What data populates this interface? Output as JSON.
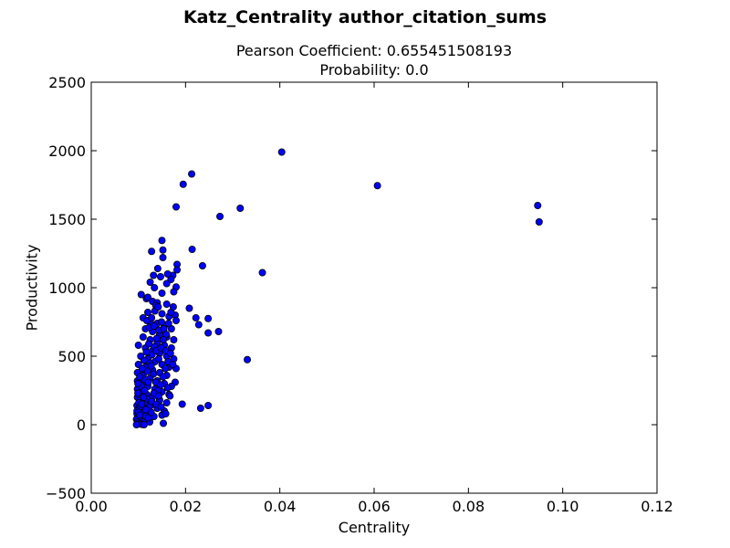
{
  "figure": {
    "suptitle": "Katz_Centrality author_citation_sums",
    "subtitle_line1": "Pearson Coefficient: 0.655451508193",
    "subtitle_line2": "Probability: 0.0"
  },
  "chart_data": {
    "type": "scatter",
    "xlabel": "Centrality",
    "ylabel": "Productivity",
    "xlim": [
      0.0,
      0.12
    ],
    "ylim": [
      -500,
      2500
    ],
    "xticks": [
      0.0,
      0.02,
      0.04,
      0.06,
      0.08,
      0.1,
      0.12
    ],
    "xtick_labels": [
      "0.00",
      "0.02",
      "0.04",
      "0.06",
      "0.08",
      "0.10",
      "0.12"
    ],
    "yticks": [
      -500,
      0,
      500,
      1000,
      1500,
      2000,
      2500
    ],
    "ytick_labels": [
      "−500",
      "0",
      "500",
      "1000",
      "1500",
      "2000",
      "2500"
    ],
    "grid": false,
    "marker_color": "#0000ff",
    "marker_edge": "#000000",
    "points": [
      [
        0.0404,
        1990
      ],
      [
        0.0213,
        1830
      ],
      [
        0.0195,
        1755
      ],
      [
        0.0607,
        1745
      ],
      [
        0.0947,
        1600
      ],
      [
        0.095,
        1480
      ],
      [
        0.0316,
        1580
      ],
      [
        0.0273,
        1520
      ],
      [
        0.018,
        1590
      ],
      [
        0.015,
        1345
      ],
      [
        0.0152,
        1275
      ],
      [
        0.0128,
        1265
      ],
      [
        0.0214,
        1280
      ],
      [
        0.0152,
        1220
      ],
      [
        0.0182,
        1170
      ],
      [
        0.0236,
        1160
      ],
      [
        0.0182,
        1130
      ],
      [
        0.0141,
        1140
      ],
      [
        0.0363,
        1110
      ],
      [
        0.0173,
        1090
      ],
      [
        0.0162,
        1100
      ],
      [
        0.0132,
        1090
      ],
      [
        0.0147,
        1080
      ],
      [
        0.0169,
        1060
      ],
      [
        0.0125,
        1040
      ],
      [
        0.016,
        1030
      ],
      [
        0.0134,
        1000
      ],
      [
        0.018,
        1005
      ],
      [
        0.015,
        960
      ],
      [
        0.0106,
        950
      ],
      [
        0.0117,
        920
      ],
      [
        0.012,
        930
      ],
      [
        0.013,
        900
      ],
      [
        0.014,
        890
      ],
      [
        0.016,
        880
      ],
      [
        0.0175,
        970
      ],
      [
        0.0208,
        850
      ],
      [
        0.0178,
        800
      ],
      [
        0.0222,
        780
      ],
      [
        0.0248,
        775
      ],
      [
        0.027,
        680
      ],
      [
        0.0248,
        670
      ],
      [
        0.0228,
        730
      ],
      [
        0.011,
        780
      ],
      [
        0.012,
        820
      ],
      [
        0.0135,
        830
      ],
      [
        0.015,
        810
      ],
      [
        0.0165,
        790
      ],
      [
        0.018,
        760
      ],
      [
        0.0125,
        750
      ],
      [
        0.014,
        740
      ],
      [
        0.0155,
        720
      ],
      [
        0.017,
        700
      ],
      [
        0.0115,
        700
      ],
      [
        0.013,
        680
      ],
      [
        0.0145,
        660
      ],
      [
        0.016,
        640
      ],
      [
        0.0175,
        620
      ],
      [
        0.011,
        640
      ],
      [
        0.0125,
        620
      ],
      [
        0.014,
        600
      ],
      [
        0.0155,
        580
      ],
      [
        0.017,
        560
      ],
      [
        0.01,
        580
      ],
      [
        0.0115,
        560
      ],
      [
        0.013,
        540
      ],
      [
        0.0145,
        520
      ],
      [
        0.016,
        500
      ],
      [
        0.0175,
        480
      ],
      [
        0.0105,
        500
      ],
      [
        0.012,
        480
      ],
      [
        0.0135,
        460
      ],
      [
        0.015,
        440
      ],
      [
        0.0165,
        420
      ],
      [
        0.018,
        410
      ],
      [
        0.0331,
        475
      ],
      [
        0.01,
        440
      ],
      [
        0.0115,
        420
      ],
      [
        0.013,
        400
      ],
      [
        0.0145,
        380
      ],
      [
        0.016,
        360
      ],
      [
        0.0178,
        310
      ],
      [
        0.0098,
        380
      ],
      [
        0.011,
        360
      ],
      [
        0.0125,
        340
      ],
      [
        0.014,
        320
      ],
      [
        0.0155,
        300
      ],
      [
        0.017,
        280
      ],
      [
        0.0098,
        320
      ],
      [
        0.0108,
        300
      ],
      [
        0.012,
        280
      ],
      [
        0.0135,
        260
      ],
      [
        0.015,
        240
      ],
      [
        0.0165,
        220
      ],
      [
        0.0098,
        260
      ],
      [
        0.0106,
        240
      ],
      [
        0.0118,
        220
      ],
      [
        0.013,
        200
      ],
      [
        0.0145,
        180
      ],
      [
        0.016,
        160
      ],
      [
        0.0193,
        150
      ],
      [
        0.0248,
        140
      ],
      [
        0.0232,
        120
      ],
      [
        0.0098,
        200
      ],
      [
        0.0104,
        180
      ],
      [
        0.0114,
        160
      ],
      [
        0.0126,
        140
      ],
      [
        0.014,
        120
      ],
      [
        0.0155,
        100
      ],
      [
        0.0097,
        140
      ],
      [
        0.0102,
        120
      ],
      [
        0.011,
        100
      ],
      [
        0.012,
        80
      ],
      [
        0.0133,
        60
      ],
      [
        0.015,
        70
      ],
      [
        0.0158,
        80
      ],
      [
        0.0097,
        80
      ],
      [
        0.01,
        60
      ],
      [
        0.0106,
        40
      ],
      [
        0.0114,
        30
      ],
      [
        0.0124,
        20
      ],
      [
        0.0153,
        10
      ],
      [
        0.0096,
        40
      ],
      [
        0.0098,
        20
      ],
      [
        0.0101,
        10
      ],
      [
        0.0104,
        5
      ],
      [
        0.0108,
        2
      ],
      [
        0.0112,
        0
      ],
      [
        0.0096,
        0
      ],
      [
        0.0097,
        100
      ],
      [
        0.0102,
        220
      ],
      [
        0.0107,
        280
      ],
      [
        0.0113,
        330
      ],
      [
        0.0119,
        390
      ],
      [
        0.0124,
        450
      ],
      [
        0.0129,
        510
      ],
      [
        0.0134,
        570
      ],
      [
        0.0139,
        630
      ],
      [
        0.0144,
        690
      ],
      [
        0.0149,
        750
      ],
      [
        0.0154,
        700
      ],
      [
        0.0159,
        660
      ],
      [
        0.0164,
        740
      ],
      [
        0.0169,
        820
      ],
      [
        0.0174,
        860
      ],
      [
        0.0137,
        870
      ],
      [
        0.0142,
        860
      ],
      [
        0.0118,
        760
      ],
      [
        0.0123,
        710
      ],
      [
        0.0128,
        780
      ],
      [
        0.0133,
        720
      ],
      [
        0.0138,
        540
      ],
      [
        0.0143,
        480
      ],
      [
        0.0148,
        560
      ],
      [
        0.0153,
        620
      ],
      [
        0.0158,
        540
      ],
      [
        0.0163,
        460
      ],
      [
        0.0168,
        520
      ],
      [
        0.0173,
        440
      ],
      [
        0.0112,
        470
      ],
      [
        0.0117,
        530
      ],
      [
        0.0122,
        590
      ],
      [
        0.0127,
        430
      ],
      [
        0.0132,
        370
      ],
      [
        0.0137,
        310
      ],
      [
        0.0142,
        250
      ],
      [
        0.0147,
        290
      ],
      [
        0.0152,
        350
      ],
      [
        0.0157,
        410
      ],
      [
        0.0162,
        270
      ],
      [
        0.0167,
        210
      ],
      [
        0.0103,
        350
      ],
      [
        0.0108,
        410
      ],
      [
        0.0113,
        250
      ],
      [
        0.0118,
        190
      ],
      [
        0.0123,
        130
      ],
      [
        0.0128,
        170
      ],
      [
        0.0133,
        230
      ],
      [
        0.0138,
        150
      ],
      [
        0.0143,
        210
      ],
      [
        0.0148,
        130
      ],
      [
        0.0099,
        300
      ],
      [
        0.0101,
        160
      ],
      [
        0.0105,
        130
      ],
      [
        0.0109,
        90
      ],
      [
        0.0115,
        60
      ],
      [
        0.0121,
        50
      ],
      [
        0.0127,
        90
      ],
      [
        0.0099,
        230
      ],
      [
        0.01,
        90
      ],
      [
        0.0103,
        70
      ],
      [
        0.0107,
        150
      ],
      [
        0.0111,
        200
      ],
      [
        0.0116,
        110
      ],
      [
        0.0121,
        310
      ]
    ]
  }
}
